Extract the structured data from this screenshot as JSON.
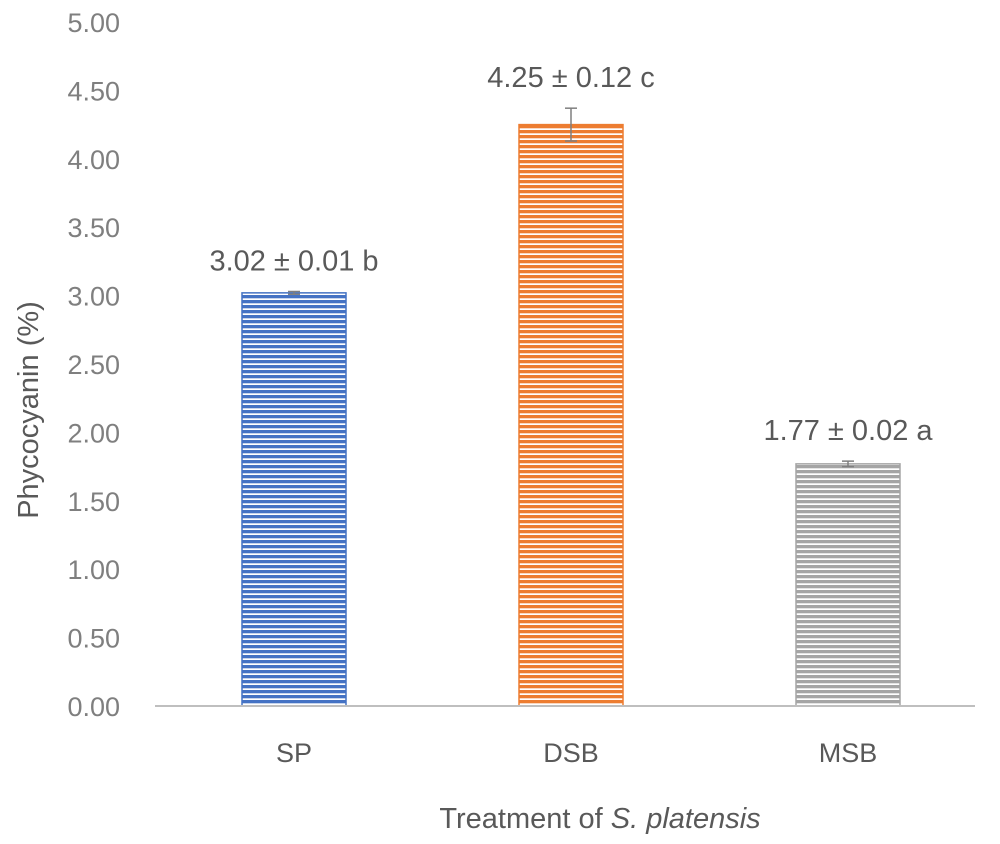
{
  "chart_data": {
    "type": "bar",
    "categories": [
      "SP",
      "DSB",
      "MSB"
    ],
    "values": [
      3.02,
      4.25,
      1.77
    ],
    "errors": [
      0.01,
      0.12,
      0.02
    ],
    "data_labels": [
      "3.02 ± 0.01 b",
      "4.25 ± 0.12 c",
      "1.77 ± 0.02 a"
    ],
    "colors": [
      "#4472c4",
      "#ed7d31",
      "#a5a5a5"
    ],
    "bar_fill": "horizontal-stripes",
    "ylabel": "Phycocyanin (%)",
    "xlabel_prefix": "Treatment of ",
    "xlabel_italic": "S. platensis",
    "ylim": [
      0,
      5
    ],
    "y_ticks": [
      "0.00",
      "0.50",
      "1.00",
      "1.50",
      "2.00",
      "2.50",
      "3.00",
      "3.50",
      "4.00",
      "4.50",
      "5.00"
    ],
    "grid": false,
    "legend": "none"
  }
}
